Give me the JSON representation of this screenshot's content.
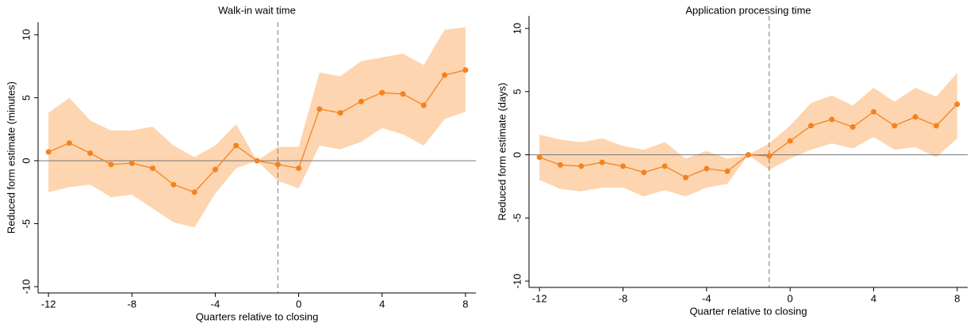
{
  "chart_data": [
    {
      "type": "line",
      "title": "Walk-in wait time",
      "xlabel": "Quarters relative to closing",
      "ylabel": "Reduced form estimate (minutes)",
      "x": [
        -12,
        -11,
        -10,
        -9,
        -8,
        -7,
        -6,
        -5,
        -4,
        -3,
        -2,
        -1,
        0,
        1,
        2,
        3,
        4,
        5,
        6,
        7,
        8
      ],
      "series": [
        {
          "color": "#f5821f",
          "values": [
            0.7,
            1.4,
            0.6,
            -0.3,
            -0.2,
            -0.6,
            -1.9,
            -2.5,
            -0.7,
            1.2,
            0,
            -0.3,
            -0.6,
            4.1,
            3.8,
            4.7,
            5.4,
            5.3,
            4.4,
            6.8,
            7.2
          ]
        }
      ],
      "band": {
        "color": "#fdd5b0",
        "lower": [
          -2.5,
          -2.1,
          -1.9,
          -2.9,
          -2.7,
          -3.8,
          -4.9,
          -5.3,
          -2.6,
          -0.6,
          0,
          -1.6,
          -2.2,
          1.2,
          0.9,
          1.5,
          2.6,
          2.1,
          1.2,
          3.3,
          3.9
        ],
        "upper": [
          3.8,
          5.0,
          3.2,
          2.4,
          2.4,
          2.7,
          1.2,
          0.3,
          1.2,
          2.9,
          0,
          1.1,
          1.1,
          7.0,
          6.7,
          7.9,
          8.2,
          8.5,
          7.6,
          10.4,
          10.6
        ]
      },
      "vline": -1,
      "hline": 0,
      "xlim": [
        -12.5,
        8.5
      ],
      "xticks": [
        -12,
        -8,
        -4,
        0,
        4,
        8
      ],
      "ylim": [
        -10.5,
        11
      ],
      "yticks": [
        -10,
        -5,
        0,
        5,
        10
      ]
    },
    {
      "type": "line",
      "title": "Application processing time",
      "xlabel": "Quarter relative to closing",
      "ylabel": "Reduced form estimate (days)",
      "x": [
        -12,
        -11,
        -10,
        -9,
        -8,
        -7,
        -6,
        -5,
        -4,
        -3,
        -2,
        -1,
        0,
        1,
        2,
        3,
        4,
        5,
        6,
        7,
        8
      ],
      "series": [
        {
          "color": "#f5821f",
          "values": [
            -0.2,
            -0.8,
            -0.9,
            -0.6,
            -0.9,
            -1.4,
            -0.9,
            -1.8,
            -1.1,
            -1.3,
            0,
            -0.1,
            1.1,
            2.3,
            2.8,
            2.2,
            3.4,
            2.3,
            3.0,
            2.3,
            4.0
          ]
        }
      ],
      "band": {
        "color": "#fdd5b0",
        "lower": [
          -2.0,
          -2.7,
          -2.9,
          -2.6,
          -2.6,
          -3.3,
          -2.8,
          -3.3,
          -2.6,
          -2.3,
          0,
          -1.2,
          -0.3,
          0.4,
          0.9,
          0.5,
          1.4,
          0.4,
          0.6,
          -0.2,
          1.3
        ],
        "upper": [
          1.6,
          1.2,
          1.0,
          1.3,
          0.7,
          0.4,
          1.0,
          -0.3,
          0.3,
          -0.3,
          0,
          0.9,
          2.3,
          4.1,
          4.7,
          3.9,
          5.3,
          4.2,
          5.3,
          4.6,
          6.5
        ]
      },
      "vline": -1,
      "hline": 0,
      "xlim": [
        -12.5,
        8.5
      ],
      "xticks": [
        -12,
        -8,
        -4,
        0,
        4,
        8
      ],
      "ylim": [
        -10.5,
        11
      ],
      "yticks": [
        -10,
        -5,
        0,
        5,
        10
      ]
    }
  ]
}
